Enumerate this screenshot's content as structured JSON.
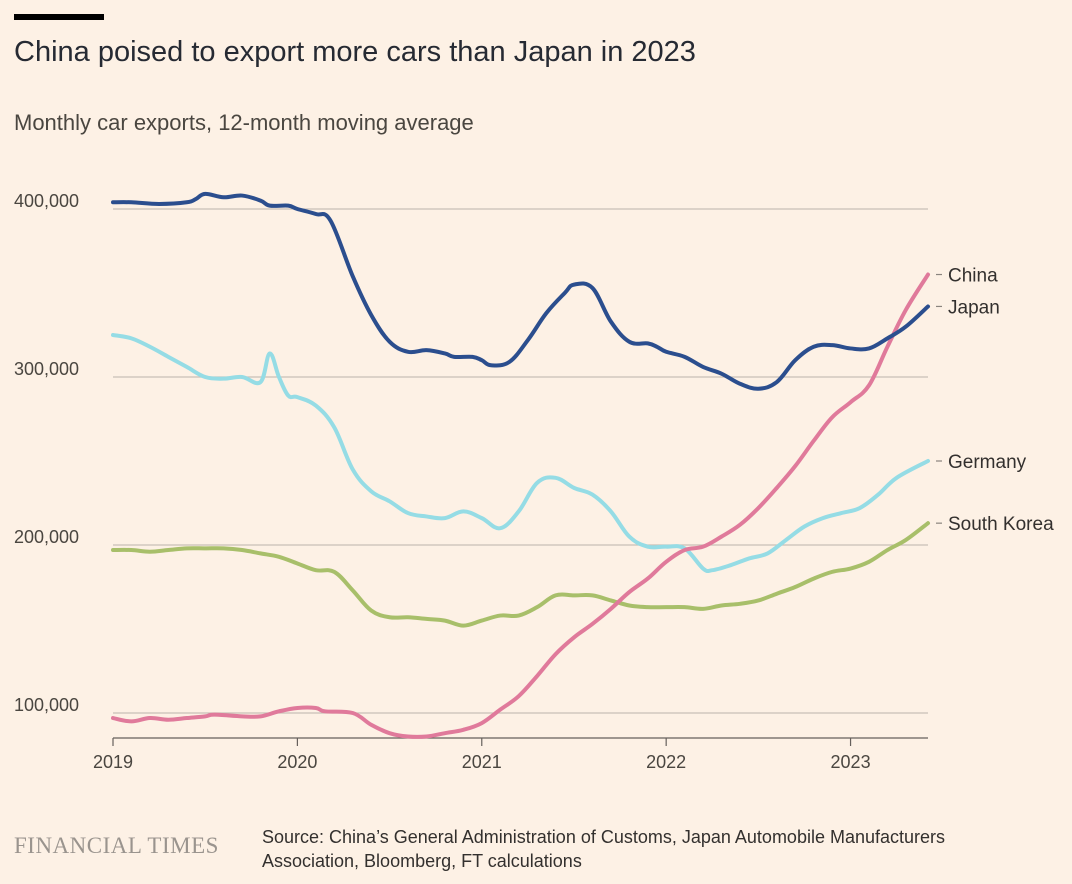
{
  "header": {
    "title": "China poised to export more cars than Japan in 2023",
    "subtitle": "Monthly car exports, 12-month moving average"
  },
  "footer": {
    "brand": "FINANCIAL TIMES",
    "source": "Source: China’s General Administration of Customs, Japan Automobile Manufacturers Association, Bloomberg, FT calculations"
  },
  "chart_data": {
    "type": "line",
    "title": "China poised to export more cars than Japan in 2023",
    "subtitle": "Monthly car exports, 12-month moving average",
    "xlim": [
      2019.0,
      2023.42
    ],
    "ylim": [
      90000,
      410000
    ],
    "yticks": [
      100000,
      200000,
      300000,
      400000
    ],
    "ytick_labels": [
      "100,000",
      "200,000",
      "300,000",
      "400,000"
    ],
    "xticks": [
      2019,
      2020,
      2021,
      2022,
      2023
    ],
    "xtick_labels": [
      "2019",
      "2020",
      "2021",
      "2022",
      "2023"
    ],
    "grid": "horizontal",
    "legend": "direct labels at line ends (right)",
    "series": [
      {
        "name": "Japan",
        "color": "#2b4e8e",
        "points": [
          [
            2019.0,
            404000
          ],
          [
            2019.1,
            404000
          ],
          [
            2019.25,
            403000
          ],
          [
            2019.4,
            404000
          ],
          [
            2019.45,
            406000
          ],
          [
            2019.5,
            409000
          ],
          [
            2019.6,
            407000
          ],
          [
            2019.7,
            408000
          ],
          [
            2019.8,
            405000
          ],
          [
            2019.85,
            402000
          ],
          [
            2019.95,
            402000
          ],
          [
            2020.0,
            400000
          ],
          [
            2020.1,
            397000
          ],
          [
            2020.18,
            393000
          ],
          [
            2020.3,
            360000
          ],
          [
            2020.4,
            337000
          ],
          [
            2020.5,
            321000
          ],
          [
            2020.6,
            315000
          ],
          [
            2020.7,
            316000
          ],
          [
            2020.8,
            314000
          ],
          [
            2020.85,
            312000
          ],
          [
            2020.95,
            312000
          ],
          [
            2021.0,
            310000
          ],
          [
            2021.05,
            307000
          ],
          [
            2021.15,
            309000
          ],
          [
            2021.25,
            322000
          ],
          [
            2021.35,
            338000
          ],
          [
            2021.45,
            350000
          ],
          [
            2021.5,
            355000
          ],
          [
            2021.6,
            353000
          ],
          [
            2021.7,
            333000
          ],
          [
            2021.8,
            321000
          ],
          [
            2021.9,
            320000
          ],
          [
            2021.95,
            318000
          ],
          [
            2022.0,
            315000
          ],
          [
            2022.1,
            312000
          ],
          [
            2022.2,
            306000
          ],
          [
            2022.3,
            302000
          ],
          [
            2022.4,
            296000
          ],
          [
            2022.5,
            293000
          ],
          [
            2022.6,
            297000
          ],
          [
            2022.7,
            310000
          ],
          [
            2022.8,
            318000
          ],
          [
            2022.9,
            319000
          ],
          [
            2023.0,
            317000
          ],
          [
            2023.1,
            317000
          ],
          [
            2023.2,
            323000
          ],
          [
            2023.3,
            330000
          ],
          [
            2023.42,
            342000
          ]
        ]
      },
      {
        "name": "China",
        "color": "#e07a9b",
        "points": [
          [
            2019.0,
            97000
          ],
          [
            2019.1,
            95000
          ],
          [
            2019.2,
            97000
          ],
          [
            2019.3,
            96000
          ],
          [
            2019.4,
            97000
          ],
          [
            2019.5,
            98000
          ],
          [
            2019.55,
            99000
          ],
          [
            2019.7,
            98000
          ],
          [
            2019.8,
            98000
          ],
          [
            2019.9,
            101000
          ],
          [
            2020.0,
            103000
          ],
          [
            2020.1,
            103000
          ],
          [
            2020.15,
            101000
          ],
          [
            2020.3,
            100000
          ],
          [
            2020.4,
            93000
          ],
          [
            2020.5,
            88000
          ],
          [
            2020.6,
            86000
          ],
          [
            2020.7,
            86000
          ],
          [
            2020.8,
            88000
          ],
          [
            2020.9,
            90000
          ],
          [
            2021.0,
            94000
          ],
          [
            2021.1,
            102000
          ],
          [
            2021.2,
            110000
          ],
          [
            2021.3,
            122000
          ],
          [
            2021.4,
            135000
          ],
          [
            2021.5,
            145000
          ],
          [
            2021.6,
            153000
          ],
          [
            2021.7,
            162000
          ],
          [
            2021.8,
            172000
          ],
          [
            2021.9,
            180000
          ],
          [
            2022.0,
            190000
          ],
          [
            2022.1,
            197000
          ],
          [
            2022.2,
            199000
          ],
          [
            2022.3,
            205000
          ],
          [
            2022.4,
            212000
          ],
          [
            2022.5,
            222000
          ],
          [
            2022.6,
            234000
          ],
          [
            2022.7,
            247000
          ],
          [
            2022.8,
            262000
          ],
          [
            2022.9,
            276000
          ],
          [
            2023.0,
            285000
          ],
          [
            2023.1,
            295000
          ],
          [
            2023.2,
            318000
          ],
          [
            2023.3,
            340000
          ],
          [
            2023.42,
            361000
          ]
        ]
      },
      {
        "name": "Germany",
        "color": "#95dce5",
        "points": [
          [
            2019.0,
            325000
          ],
          [
            2019.1,
            323000
          ],
          [
            2019.2,
            318000
          ],
          [
            2019.3,
            312000
          ],
          [
            2019.4,
            306000
          ],
          [
            2019.5,
            300000
          ],
          [
            2019.6,
            299000
          ],
          [
            2019.7,
            300000
          ],
          [
            2019.8,
            297000
          ],
          [
            2019.85,
            314000
          ],
          [
            2019.9,
            300000
          ],
          [
            2019.95,
            289000
          ],
          [
            2020.0,
            288000
          ],
          [
            2020.1,
            283000
          ],
          [
            2020.2,
            270000
          ],
          [
            2020.3,
            245000
          ],
          [
            2020.4,
            232000
          ],
          [
            2020.5,
            226000
          ],
          [
            2020.6,
            219000
          ],
          [
            2020.7,
            217000
          ],
          [
            2020.8,
            216000
          ],
          [
            2020.9,
            220000
          ],
          [
            2021.0,
            216000
          ],
          [
            2021.1,
            210000
          ],
          [
            2021.2,
            220000
          ],
          [
            2021.3,
            237000
          ],
          [
            2021.4,
            240000
          ],
          [
            2021.5,
            234000
          ],
          [
            2021.6,
            230000
          ],
          [
            2021.7,
            220000
          ],
          [
            2021.8,
            205000
          ],
          [
            2021.9,
            199000
          ],
          [
            2022.0,
            199000
          ],
          [
            2022.1,
            198000
          ],
          [
            2022.2,
            186000
          ],
          [
            2022.25,
            185000
          ],
          [
            2022.35,
            188000
          ],
          [
            2022.45,
            192000
          ],
          [
            2022.55,
            195000
          ],
          [
            2022.65,
            203000
          ],
          [
            2022.75,
            211000
          ],
          [
            2022.85,
            216000
          ],
          [
            2022.95,
            219000
          ],
          [
            2023.05,
            222000
          ],
          [
            2023.15,
            230000
          ],
          [
            2023.25,
            240000
          ],
          [
            2023.42,
            250000
          ]
        ]
      },
      {
        "name": "South Korea",
        "color": "#a8bf6a",
        "points": [
          [
            2019.0,
            197000
          ],
          [
            2019.1,
            197000
          ],
          [
            2019.2,
            196000
          ],
          [
            2019.3,
            197000
          ],
          [
            2019.4,
            198000
          ],
          [
            2019.5,
            198000
          ],
          [
            2019.6,
            198000
          ],
          [
            2019.7,
            197000
          ],
          [
            2019.8,
            195000
          ],
          [
            2019.9,
            193000
          ],
          [
            2020.0,
            189000
          ],
          [
            2020.1,
            185000
          ],
          [
            2020.2,
            184000
          ],
          [
            2020.3,
            173000
          ],
          [
            2020.4,
            161000
          ],
          [
            2020.5,
            157000
          ],
          [
            2020.6,
            157000
          ],
          [
            2020.7,
            156000
          ],
          [
            2020.8,
            155000
          ],
          [
            2020.9,
            152000
          ],
          [
            2021.0,
            155000
          ],
          [
            2021.1,
            158000
          ],
          [
            2021.2,
            158000
          ],
          [
            2021.3,
            163000
          ],
          [
            2021.4,
            170000
          ],
          [
            2021.5,
            170000
          ],
          [
            2021.6,
            170000
          ],
          [
            2021.7,
            167000
          ],
          [
            2021.8,
            164000
          ],
          [
            2021.9,
            163000
          ],
          [
            2022.0,
            163000
          ],
          [
            2022.1,
            163000
          ],
          [
            2022.2,
            162000
          ],
          [
            2022.3,
            164000
          ],
          [
            2022.4,
            165000
          ],
          [
            2022.5,
            167000
          ],
          [
            2022.6,
            171000
          ],
          [
            2022.7,
            175000
          ],
          [
            2022.8,
            180000
          ],
          [
            2022.9,
            184000
          ],
          [
            2023.0,
            186000
          ],
          [
            2023.1,
            190000
          ],
          [
            2023.2,
            197000
          ],
          [
            2023.3,
            203000
          ],
          [
            2023.42,
            213000
          ]
        ]
      }
    ]
  }
}
